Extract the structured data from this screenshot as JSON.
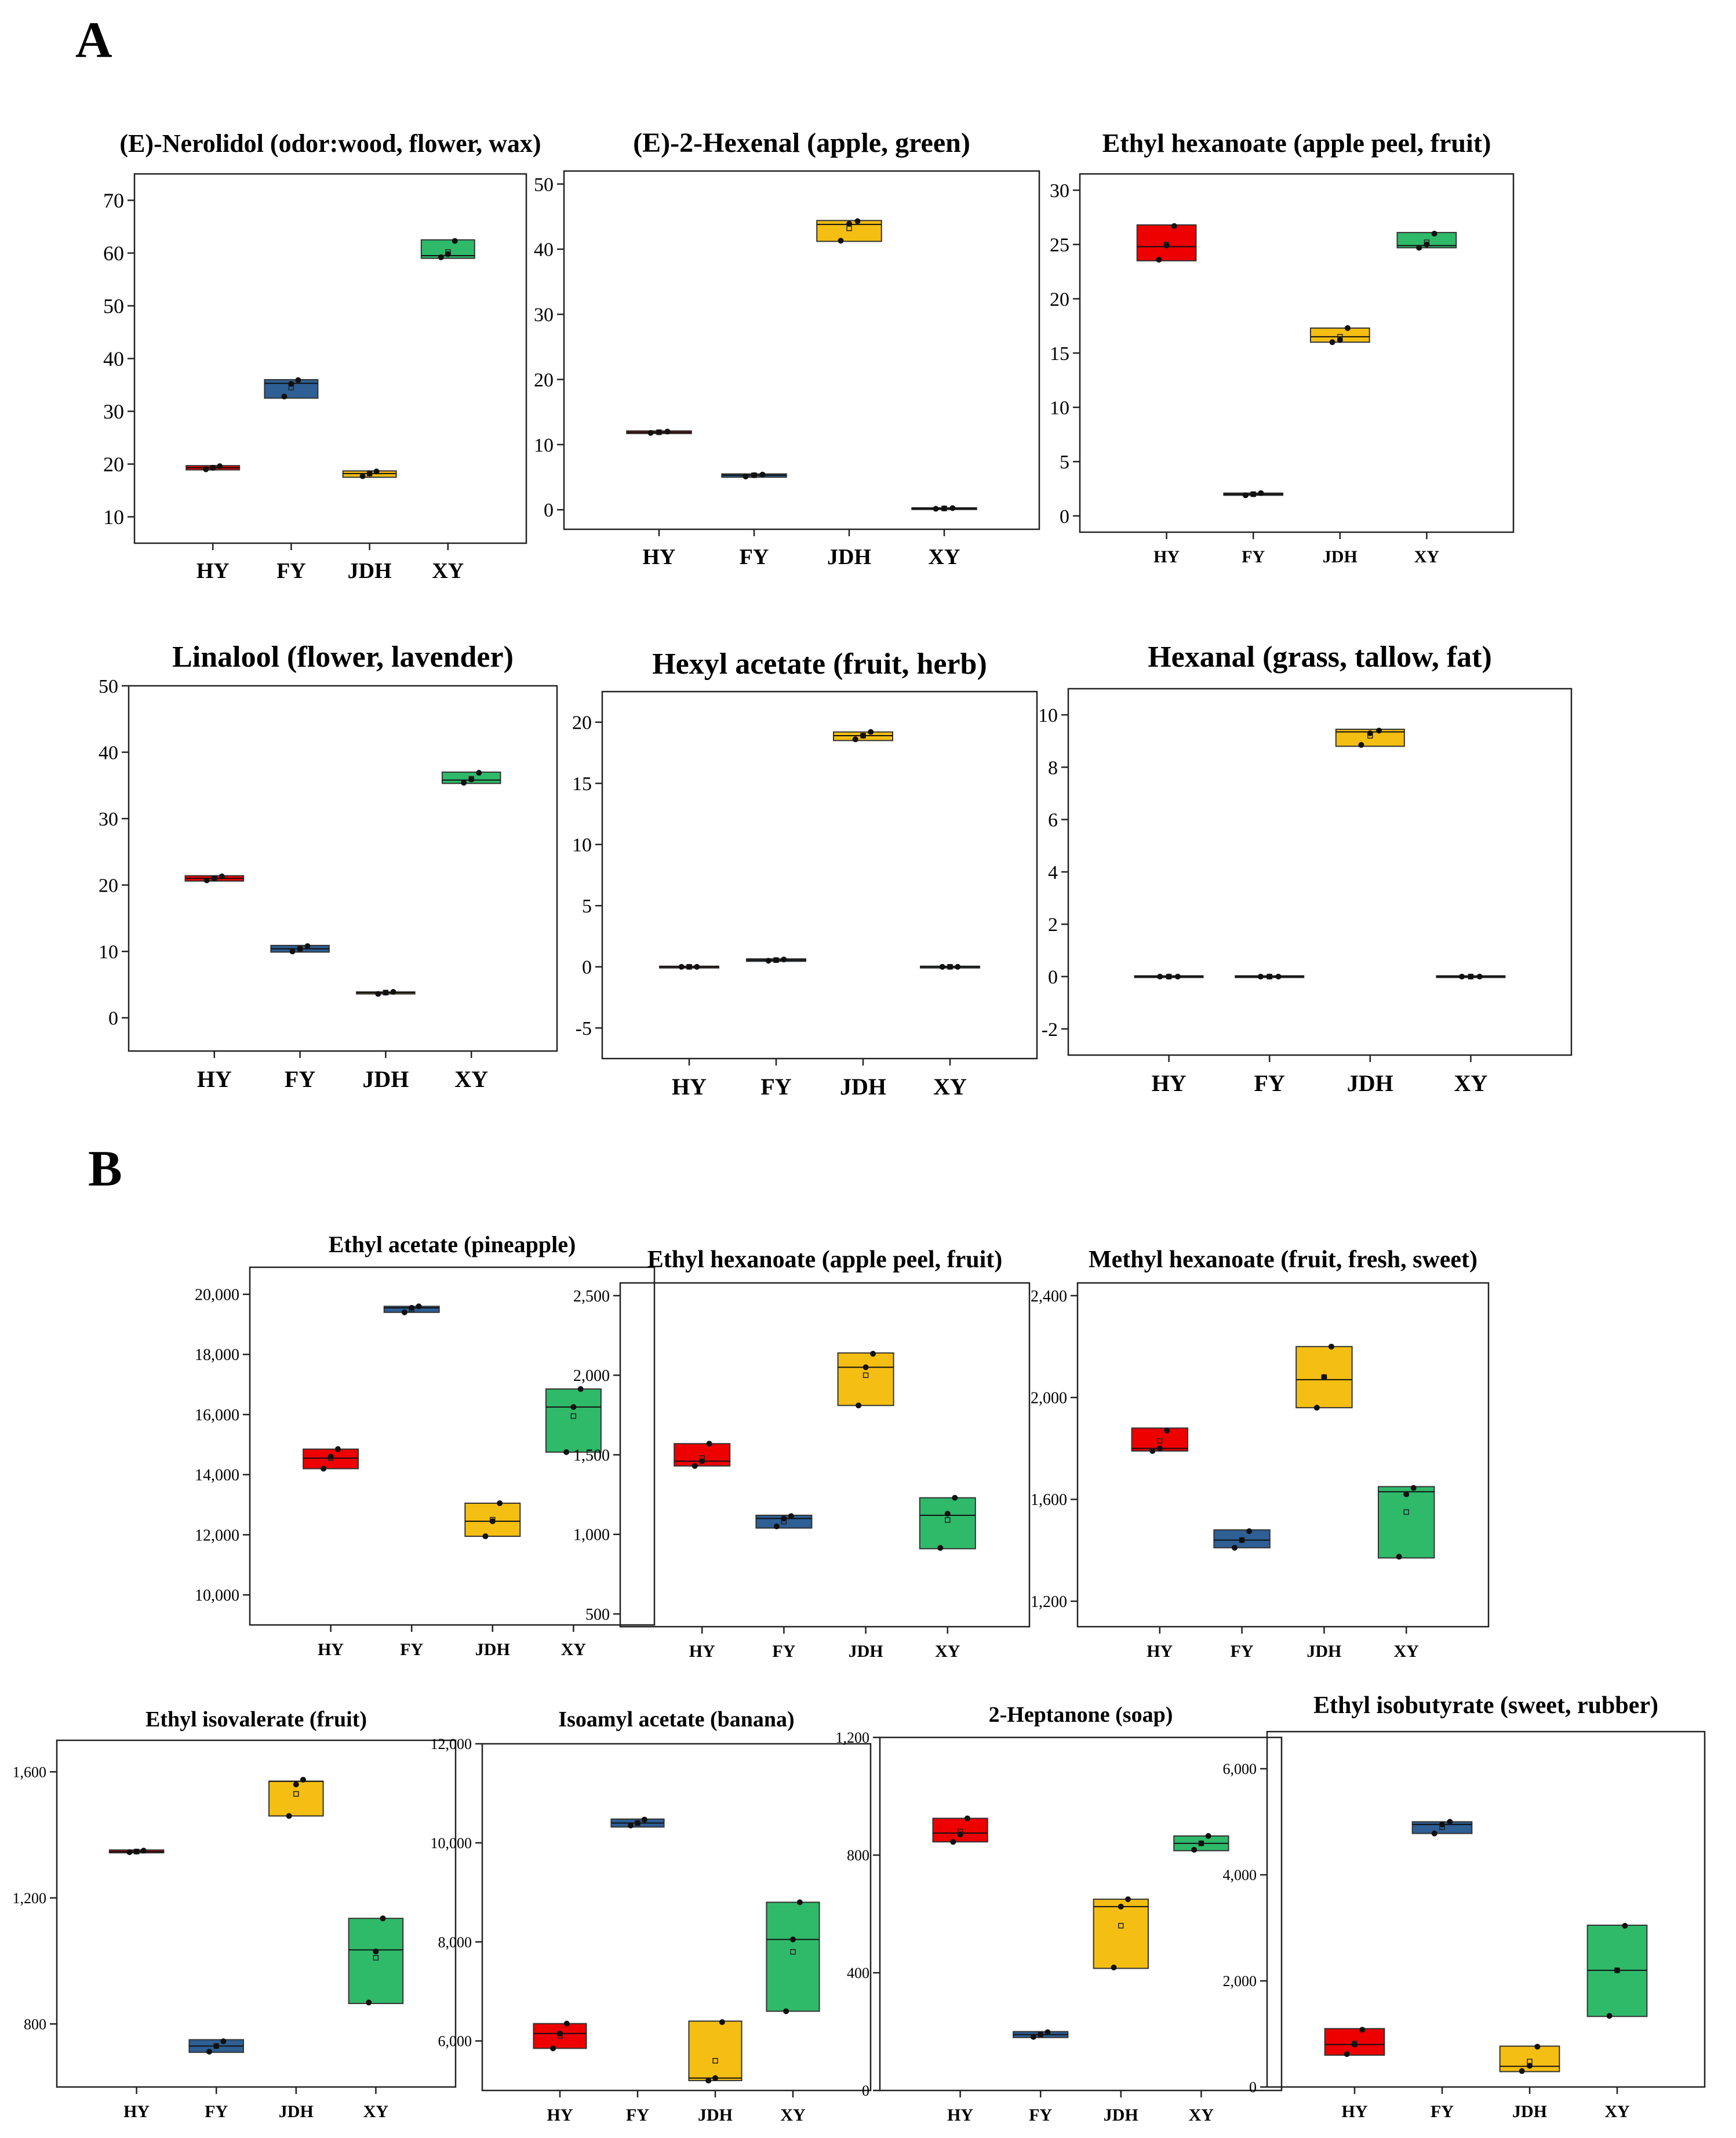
{
  "panels": [
    {
      "label": "A"
    },
    {
      "label": "B"
    }
  ],
  "colors": {
    "HY": "#ee0000",
    "FY": "#2e5f95",
    "JDH": "#f5be12",
    "XY": "#2fba6a"
  },
  "chart_data": [
    {
      "type": "box",
      "panel": "A",
      "title": "(E)-Nerolidol (odor:wood, flower, wax)",
      "categories": [
        "HY",
        "FY",
        "JDH",
        "XY"
      ],
      "ylim": [
        5,
        75
      ],
      "yticks": [
        10,
        20,
        30,
        40,
        50,
        60,
        70
      ],
      "yticklabels": [
        "10",
        "20",
        "30",
        "40",
        "50",
        "60",
        "70"
      ],
      "boxes": [
        {
          "q1": 18.9,
          "median": 19.3,
          "q3": 19.7,
          "mean": 19.3
        },
        {
          "q1": 32.5,
          "median": 35.3,
          "q3": 36.0,
          "mean": 34.5
        },
        {
          "q1": 17.5,
          "median": 18.2,
          "q3": 18.7,
          "mean": 18.2
        },
        {
          "q1": 59.0,
          "median": 59.5,
          "q3": 62.5,
          "mean": 60.2
        }
      ],
      "points": [
        [
          19.0,
          19.3,
          19.6
        ],
        [
          32.8,
          35.2,
          35.9
        ],
        [
          17.7,
          18.2,
          18.6
        ],
        [
          59.2,
          59.8,
          62.3
        ]
      ]
    },
    {
      "type": "box",
      "panel": "A",
      "title": "(E)-2-Hexenal (apple, green)",
      "categories": [
        "HY",
        "FY",
        "JDH",
        "XY"
      ],
      "ylim": [
        -3,
        52
      ],
      "yticks": [
        0,
        10,
        20,
        30,
        40,
        50
      ],
      "yticklabels": [
        "0",
        "10",
        "20",
        "30",
        "40",
        "50"
      ],
      "boxes": [
        {
          "q1": 11.7,
          "median": 11.9,
          "q3": 12.1,
          "mean": 11.9
        },
        {
          "q1": 5.0,
          "median": 5.3,
          "q3": 5.5,
          "mean": 5.3
        },
        {
          "q1": 41.2,
          "median": 43.8,
          "q3": 44.4,
          "mean": 43.2
        },
        {
          "q1": 0.1,
          "median": 0.2,
          "q3": 0.3,
          "mean": 0.2
        }
      ],
      "points": [
        [
          11.8,
          11.9,
          12.0
        ],
        [
          5.1,
          5.3,
          5.4
        ],
        [
          41.3,
          43.9,
          44.3
        ],
        [
          0.15,
          0.2,
          0.25
        ]
      ]
    },
    {
      "type": "box",
      "panel": "A",
      "title": "Ethyl hexanoate (apple peel, fruit)",
      "categories": [
        "HY",
        "FY",
        "JDH",
        "XY"
      ],
      "ylim": [
        -1.5,
        31.5
      ],
      "yticks": [
        0,
        5,
        10,
        15,
        20,
        25,
        30
      ],
      "yticklabels": [
        "0",
        "5",
        "10",
        "15",
        "20",
        "25",
        "30"
      ],
      "boxes": [
        {
          "q1": 23.5,
          "median": 24.8,
          "q3": 26.8,
          "mean": 25.0
        },
        {
          "q1": 1.9,
          "median": 2.0,
          "q3": 2.1,
          "mean": 2.0
        },
        {
          "q1": 16.0,
          "median": 16.5,
          "q3": 17.3,
          "mean": 16.5
        },
        {
          "q1": 24.7,
          "median": 24.9,
          "q3": 26.1,
          "mean": 25.2
        }
      ],
      "points": [
        [
          23.6,
          24.9,
          26.7
        ],
        [
          1.9,
          2.0,
          2.1
        ],
        [
          16.0,
          16.2,
          17.3
        ],
        [
          24.7,
          25.0,
          26.0
        ]
      ]
    },
    {
      "type": "box",
      "panel": "A",
      "title": "Linalool (flower, lavender)",
      "categories": [
        "HY",
        "FY",
        "JDH",
        "XY"
      ],
      "ylim": [
        -5,
        50
      ],
      "yticks": [
        0,
        10,
        20,
        30,
        40,
        50
      ],
      "yticklabels": [
        "0",
        "10",
        "20",
        "30",
        "40",
        "50"
      ],
      "boxes": [
        {
          "q1": 20.6,
          "median": 21.0,
          "q3": 21.4,
          "mean": 21.0
        },
        {
          "q1": 9.9,
          "median": 10.4,
          "q3": 10.9,
          "mean": 10.4
        },
        {
          "q1": 3.6,
          "median": 3.8,
          "q3": 3.9,
          "mean": 3.8
        },
        {
          "q1": 35.3,
          "median": 35.8,
          "q3": 37.0,
          "mean": 36.0
        }
      ],
      "points": [
        [
          20.7,
          21.0,
          21.3
        ],
        [
          10.0,
          10.4,
          10.8
        ],
        [
          3.6,
          3.8,
          3.9
        ],
        [
          35.4,
          35.9,
          36.9
        ]
      ]
    },
    {
      "type": "box",
      "panel": "A",
      "title": "Hexyl acetate (fruit, herb)",
      "categories": [
        "HY",
        "FY",
        "JDH",
        "XY"
      ],
      "ylim": [
        -7.5,
        22.5
      ],
      "yticks": [
        -5,
        0,
        5,
        10,
        15,
        20
      ],
      "yticklabels": [
        "-5",
        "0",
        "5",
        "10",
        "15",
        "20"
      ],
      "boxes": [
        {
          "q1": -0.05,
          "median": 0.0,
          "q3": 0.05,
          "mean": 0.0
        },
        {
          "q1": 0.45,
          "median": 0.55,
          "q3": 0.65,
          "mean": 0.55
        },
        {
          "q1": 18.5,
          "median": 18.9,
          "q3": 19.2,
          "mean": 18.9
        },
        {
          "q1": -0.05,
          "median": 0.0,
          "q3": 0.05,
          "mean": 0.0
        }
      ],
      "points": [
        [
          0.0,
          0.0,
          0.0
        ],
        [
          0.5,
          0.55,
          0.6
        ],
        [
          18.6,
          18.9,
          19.2
        ],
        [
          0.0,
          0.0,
          0.0
        ]
      ]
    },
    {
      "type": "box",
      "panel": "A",
      "title": "Hexanal (grass, tallow, fat)",
      "categories": [
        "HY",
        "FY",
        "JDH",
        "XY"
      ],
      "ylim": [
        -3,
        11
      ],
      "yticks": [
        -2,
        0,
        2,
        4,
        6,
        8,
        10
      ],
      "yticklabels": [
        "-2",
        "0",
        "2",
        "4",
        "6",
        "8",
        "10"
      ],
      "boxes": [
        {
          "q1": -0.03,
          "median": 0.0,
          "q3": 0.03,
          "mean": 0.0
        },
        {
          "q1": -0.03,
          "median": 0.0,
          "q3": 0.03,
          "mean": 0.0
        },
        {
          "q1": 8.8,
          "median": 9.35,
          "q3": 9.45,
          "mean": 9.2
        },
        {
          "q1": -0.03,
          "median": 0.0,
          "q3": 0.03,
          "mean": 0.0
        }
      ],
      "points": [
        [
          0.0,
          0.0,
          0.0
        ],
        [
          0.0,
          0.0,
          0.0
        ],
        [
          8.85,
          9.3,
          9.4
        ],
        [
          0.0,
          0.0,
          0.0
        ]
      ]
    },
    {
      "type": "box",
      "panel": "B",
      "title": "Ethyl acetate (pineapple)",
      "categories": [
        "HY",
        "FY",
        "JDH",
        "XY"
      ],
      "ylim": [
        9000,
        20900
      ],
      "yticks": [
        10000,
        12000,
        14000,
        16000,
        18000,
        20000
      ],
      "yticklabels": [
        "10,000",
        "12,000",
        "14,000",
        "16,000",
        "18,000",
        "20,000"
      ],
      "boxes": [
        {
          "q1": 14200,
          "median": 14550,
          "q3": 14850,
          "mean": 14550
        },
        {
          "q1": 19400,
          "median": 19550,
          "q3": 19600,
          "mean": 19500
        },
        {
          "q1": 11950,
          "median": 12450,
          "q3": 13050,
          "mean": 12500
        },
        {
          "q1": 14750,
          "median": 16250,
          "q3": 16850,
          "mean": 15950
        }
      ],
      "points": [
        [
          14200,
          14600,
          14850
        ],
        [
          19400,
          19550,
          19600
        ],
        [
          11950,
          12450,
          13050
        ],
        [
          14750,
          16250,
          16850
        ]
      ]
    },
    {
      "type": "box",
      "panel": "B",
      "title": "Ethyl hexanoate (apple peel, fruit)",
      "categories": [
        "HY",
        "FY",
        "JDH",
        "XY"
      ],
      "ylim": [
        420,
        2580
      ],
      "yticks": [
        500,
        1000,
        1500,
        2000,
        2500
      ],
      "yticklabels": [
        "500",
        "1,000",
        "1,500",
        "2,000",
        "2,500"
      ],
      "boxes": [
        {
          "q1": 1430,
          "median": 1460,
          "q3": 1570,
          "mean": 1480
        },
        {
          "q1": 1040,
          "median": 1100,
          "q3": 1120,
          "mean": 1080
        },
        {
          "q1": 1810,
          "median": 2050,
          "q3": 2140,
          "mean": 2000
        },
        {
          "q1": 910,
          "median": 1120,
          "q3": 1230,
          "mean": 1090
        }
      ],
      "points": [
        [
          1430,
          1460,
          1570
        ],
        [
          1050,
          1100,
          1115
        ],
        [
          1810,
          2050,
          2135
        ],
        [
          915,
          1130,
          1230
        ]
      ]
    },
    {
      "type": "box",
      "panel": "B",
      "title": "Methyl hexanoate (fruit, fresh, sweet)",
      "categories": [
        "HY",
        "FY",
        "JDH",
        "XY"
      ],
      "ylim": [
        1100,
        2450
      ],
      "yticks": [
        1200,
        1600,
        2000,
        2400
      ],
      "yticklabels": [
        "1,200",
        "1,600",
        "2,000",
        "2,400"
      ],
      "boxes": [
        {
          "q1": 1790,
          "median": 1800,
          "q3": 1880,
          "mean": 1830
        },
        {
          "q1": 1410,
          "median": 1440,
          "q3": 1480,
          "mean": 1440
        },
        {
          "q1": 1960,
          "median": 2070,
          "q3": 2200,
          "mean": 2080
        },
        {
          "q1": 1370,
          "median": 1630,
          "q3": 1650,
          "mean": 1550
        }
      ],
      "points": [
        [
          1790,
          1800,
          1870
        ],
        [
          1410,
          1440,
          1475
        ],
        [
          1960,
          2080,
          2200
        ],
        [
          1375,
          1620,
          1645
        ]
      ]
    },
    {
      "type": "box",
      "panel": "B",
      "title": "Ethyl isovalerate (fruit)",
      "categories": [
        "HY",
        "FY",
        "JDH",
        "XY"
      ],
      "ylim": [
        600,
        1700
      ],
      "yticks": [
        800,
        1200,
        1600
      ],
      "yticklabels": [
        "800",
        "1,200",
        "1,600"
      ],
      "boxes": [
        {
          "q1": 1343,
          "median": 1347,
          "q3": 1352,
          "mean": 1347
        },
        {
          "q1": 710,
          "median": 730,
          "q3": 750,
          "mean": 730
        },
        {
          "q1": 1460,
          "median": 1570,
          "q3": 1570,
          "mean": 1530
        },
        {
          "q1": 865,
          "median": 1035,
          "q3": 1135,
          "mean": 1010
        }
      ],
      "points": [
        [
          1345,
          1347,
          1350
        ],
        [
          712,
          730,
          745
        ],
        [
          1460,
          1560,
          1575
        ],
        [
          868,
          1030,
          1135
        ]
      ]
    },
    {
      "type": "box",
      "panel": "B",
      "title": "Isoamyl acetate (banana)",
      "categories": [
        "HY",
        "FY",
        "JDH",
        "XY"
      ],
      "ylim": [
        5000,
        12000
      ],
      "yticks": [
        6000,
        8000,
        10000,
        12000
      ],
      "yticklabels": [
        "6,000",
        "8,000",
        "10,000",
        "12,000"
      ],
      "boxes": [
        {
          "q1": 5850,
          "median": 6150,
          "q3": 6350,
          "mean": 6100
        },
        {
          "q1": 10320,
          "median": 10400,
          "q3": 10480,
          "mean": 10400
        },
        {
          "q1": 5200,
          "median": 5250,
          "q3": 6400,
          "mean": 5600
        },
        {
          "q1": 6600,
          "median": 8050,
          "q3": 8800,
          "mean": 7800
        }
      ],
      "points": [
        [
          5850,
          6150,
          6350
        ],
        [
          10350,
          10400,
          10470
        ],
        [
          5200,
          5250,
          6380
        ],
        [
          6600,
          8050,
          8800
        ]
      ]
    },
    {
      "type": "box",
      "panel": "B",
      "title": "2-Heptanone (soap)",
      "categories": [
        "HY",
        "FY",
        "JDH",
        "XY"
      ],
      "ylim": [
        0,
        1200
      ],
      "yticks": [
        0,
        400,
        800,
        1200
      ],
      "yticklabels": [
        "0",
        "400",
        "800",
        "1,200"
      ],
      "boxes": [
        {
          "q1": 845,
          "median": 875,
          "q3": 925,
          "mean": 880
        },
        {
          "q1": 180,
          "median": 190,
          "q3": 200,
          "mean": 190
        },
        {
          "q1": 415,
          "median": 625,
          "q3": 650,
          "mean": 560
        },
        {
          "q1": 815,
          "median": 840,
          "q3": 865,
          "mean": 840
        }
      ],
      "points": [
        [
          845,
          870,
          925
        ],
        [
          182,
          190,
          198
        ],
        [
          418,
          625,
          650
        ],
        [
          818,
          840,
          865
        ]
      ]
    },
    {
      "type": "box",
      "panel": "B",
      "title": "Ethyl isobutyrate (sweet, rubber)",
      "categories": [
        "HY",
        "FY",
        "JDH",
        "XY"
      ],
      "ylim": [
        0,
        6700
      ],
      "yticks": [
        0,
        2000,
        4000,
        6000
      ],
      "yticklabels": [
        "0",
        "2,000",
        "4,000",
        "6,000"
      ],
      "boxes": [
        {
          "q1": 600,
          "median": 800,
          "q3": 1100,
          "mean": 820
        },
        {
          "q1": 4780,
          "median": 4950,
          "q3": 5000,
          "mean": 4900
        },
        {
          "q1": 290,
          "median": 390,
          "q3": 770,
          "mean": 480
        },
        {
          "q1": 1330,
          "median": 2200,
          "q3": 3050,
          "mean": 2200
        }
      ],
      "points": [
        [
          620,
          800,
          1080
        ],
        [
          4780,
          4950,
          5000
        ],
        [
          300,
          400,
          760
        ],
        [
          1340,
          2200,
          3040
        ]
      ]
    }
  ]
}
